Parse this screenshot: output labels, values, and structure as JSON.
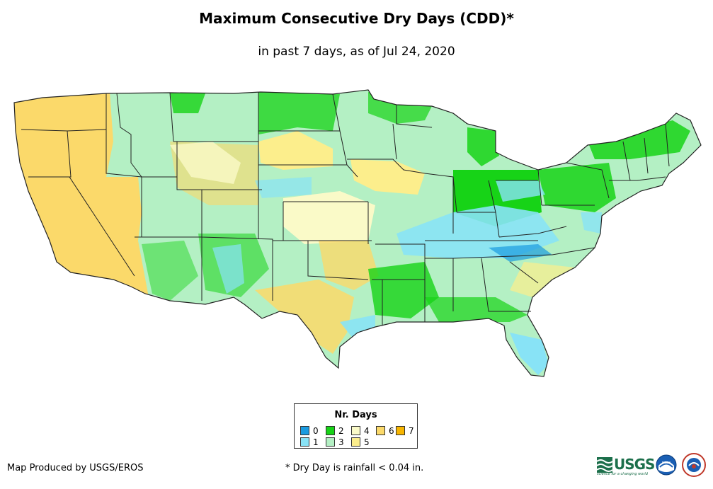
{
  "title": "Maximum Consecutive Dry Days (CDD)*",
  "subtitle": "in past 7 days, as of Jul 24, 2020",
  "legend": {
    "title": "Nr. Days",
    "items": [
      {
        "label": "0",
        "color": "#1a9be0"
      },
      {
        "label": "1",
        "color": "#88e3f6"
      },
      {
        "label": "2",
        "color": "#17d317"
      },
      {
        "label": "3",
        "color": "#b4f0c4"
      },
      {
        "label": "4",
        "color": "#fafac8"
      },
      {
        "label": "5",
        "color": "#fcee8c"
      },
      {
        "label": "6",
        "color": "#fbd96a"
      },
      {
        "label": "7",
        "color": "#f7b500"
      }
    ]
  },
  "credit": "Map Produced by USGS/EROS",
  "footnote": "* Dry Day is rainfall < 0.04 in.",
  "logos": {
    "usgs": "USGS",
    "usgs_tagline": "science for a changing world",
    "noaa": "noaa"
  },
  "colors": {
    "state_border": "#222222",
    "usgs_green": "#1c6f4b"
  }
}
